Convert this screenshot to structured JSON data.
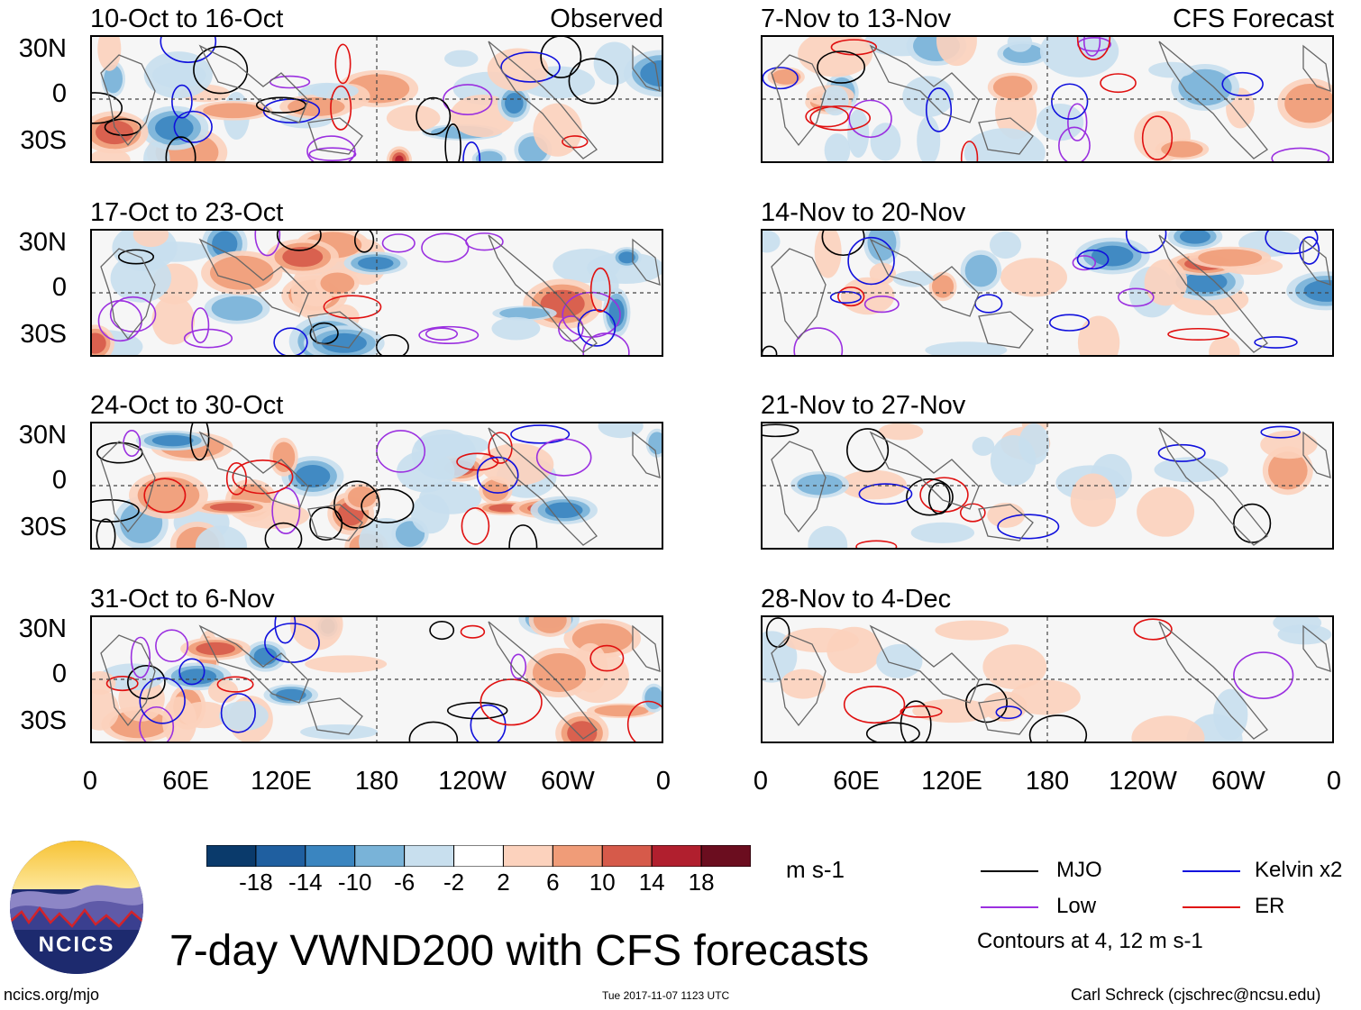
{
  "chart_data": {
    "type": "heatmap",
    "title": "7-day VWND200 with CFS forecasts",
    "variable": "VWND200",
    "units": "m s-1",
    "contour_note": "Contours at 4, 12 m s-1",
    "panel_labels": {
      "observed": "Observed",
      "forecast": "CFS Forecast"
    },
    "lat_ticks": [
      "30N",
      "0",
      "30S"
    ],
    "lon_ticks": [
      "0",
      "60E",
      "120E",
      "180",
      "120W",
      "60W",
      "0"
    ],
    "observed_panels": [
      {
        "title": "10-Oct to 16-Oct"
      },
      {
        "title": "17-Oct to 23-Oct"
      },
      {
        "title": "24-Oct to 30-Oct"
      },
      {
        "title": "31-Oct to 6-Nov"
      }
    ],
    "forecast_panels": [
      {
        "title": "7-Nov to 13-Nov"
      },
      {
        "title": "14-Nov to 20-Nov"
      },
      {
        "title": "21-Nov to 27-Nov"
      },
      {
        "title": "28-Nov to 4-Dec"
      }
    ],
    "colorbar": {
      "ticks": [
        "-18",
        "-14",
        "-10",
        "-6",
        "-2",
        "2",
        "6",
        "10",
        "14",
        "18"
      ],
      "colors": [
        "#0a3a6b",
        "#1f5fa0",
        "#3a85c0",
        "#79b3d8",
        "#c8dfee",
        "#ffffff",
        "#fcd2bd",
        "#f09c78",
        "#d65a4a",
        "#b11f2e",
        "#6b0d1f"
      ]
    },
    "legend": [
      {
        "name": "MJO",
        "color": "#000000"
      },
      {
        "name": "Kelvin x2",
        "color": "#1010dd"
      },
      {
        "name": "Low",
        "color": "#9b30e0"
      },
      {
        "name": "ER",
        "color": "#e01010"
      }
    ]
  },
  "footer": {
    "logo_text": "NCICS",
    "url": "ncics.org/mjo",
    "timestamp": "Tue 2017-11-07 1123 UTC",
    "credit": "Carl Schreck (cjschrec@ncsu.edu)"
  }
}
